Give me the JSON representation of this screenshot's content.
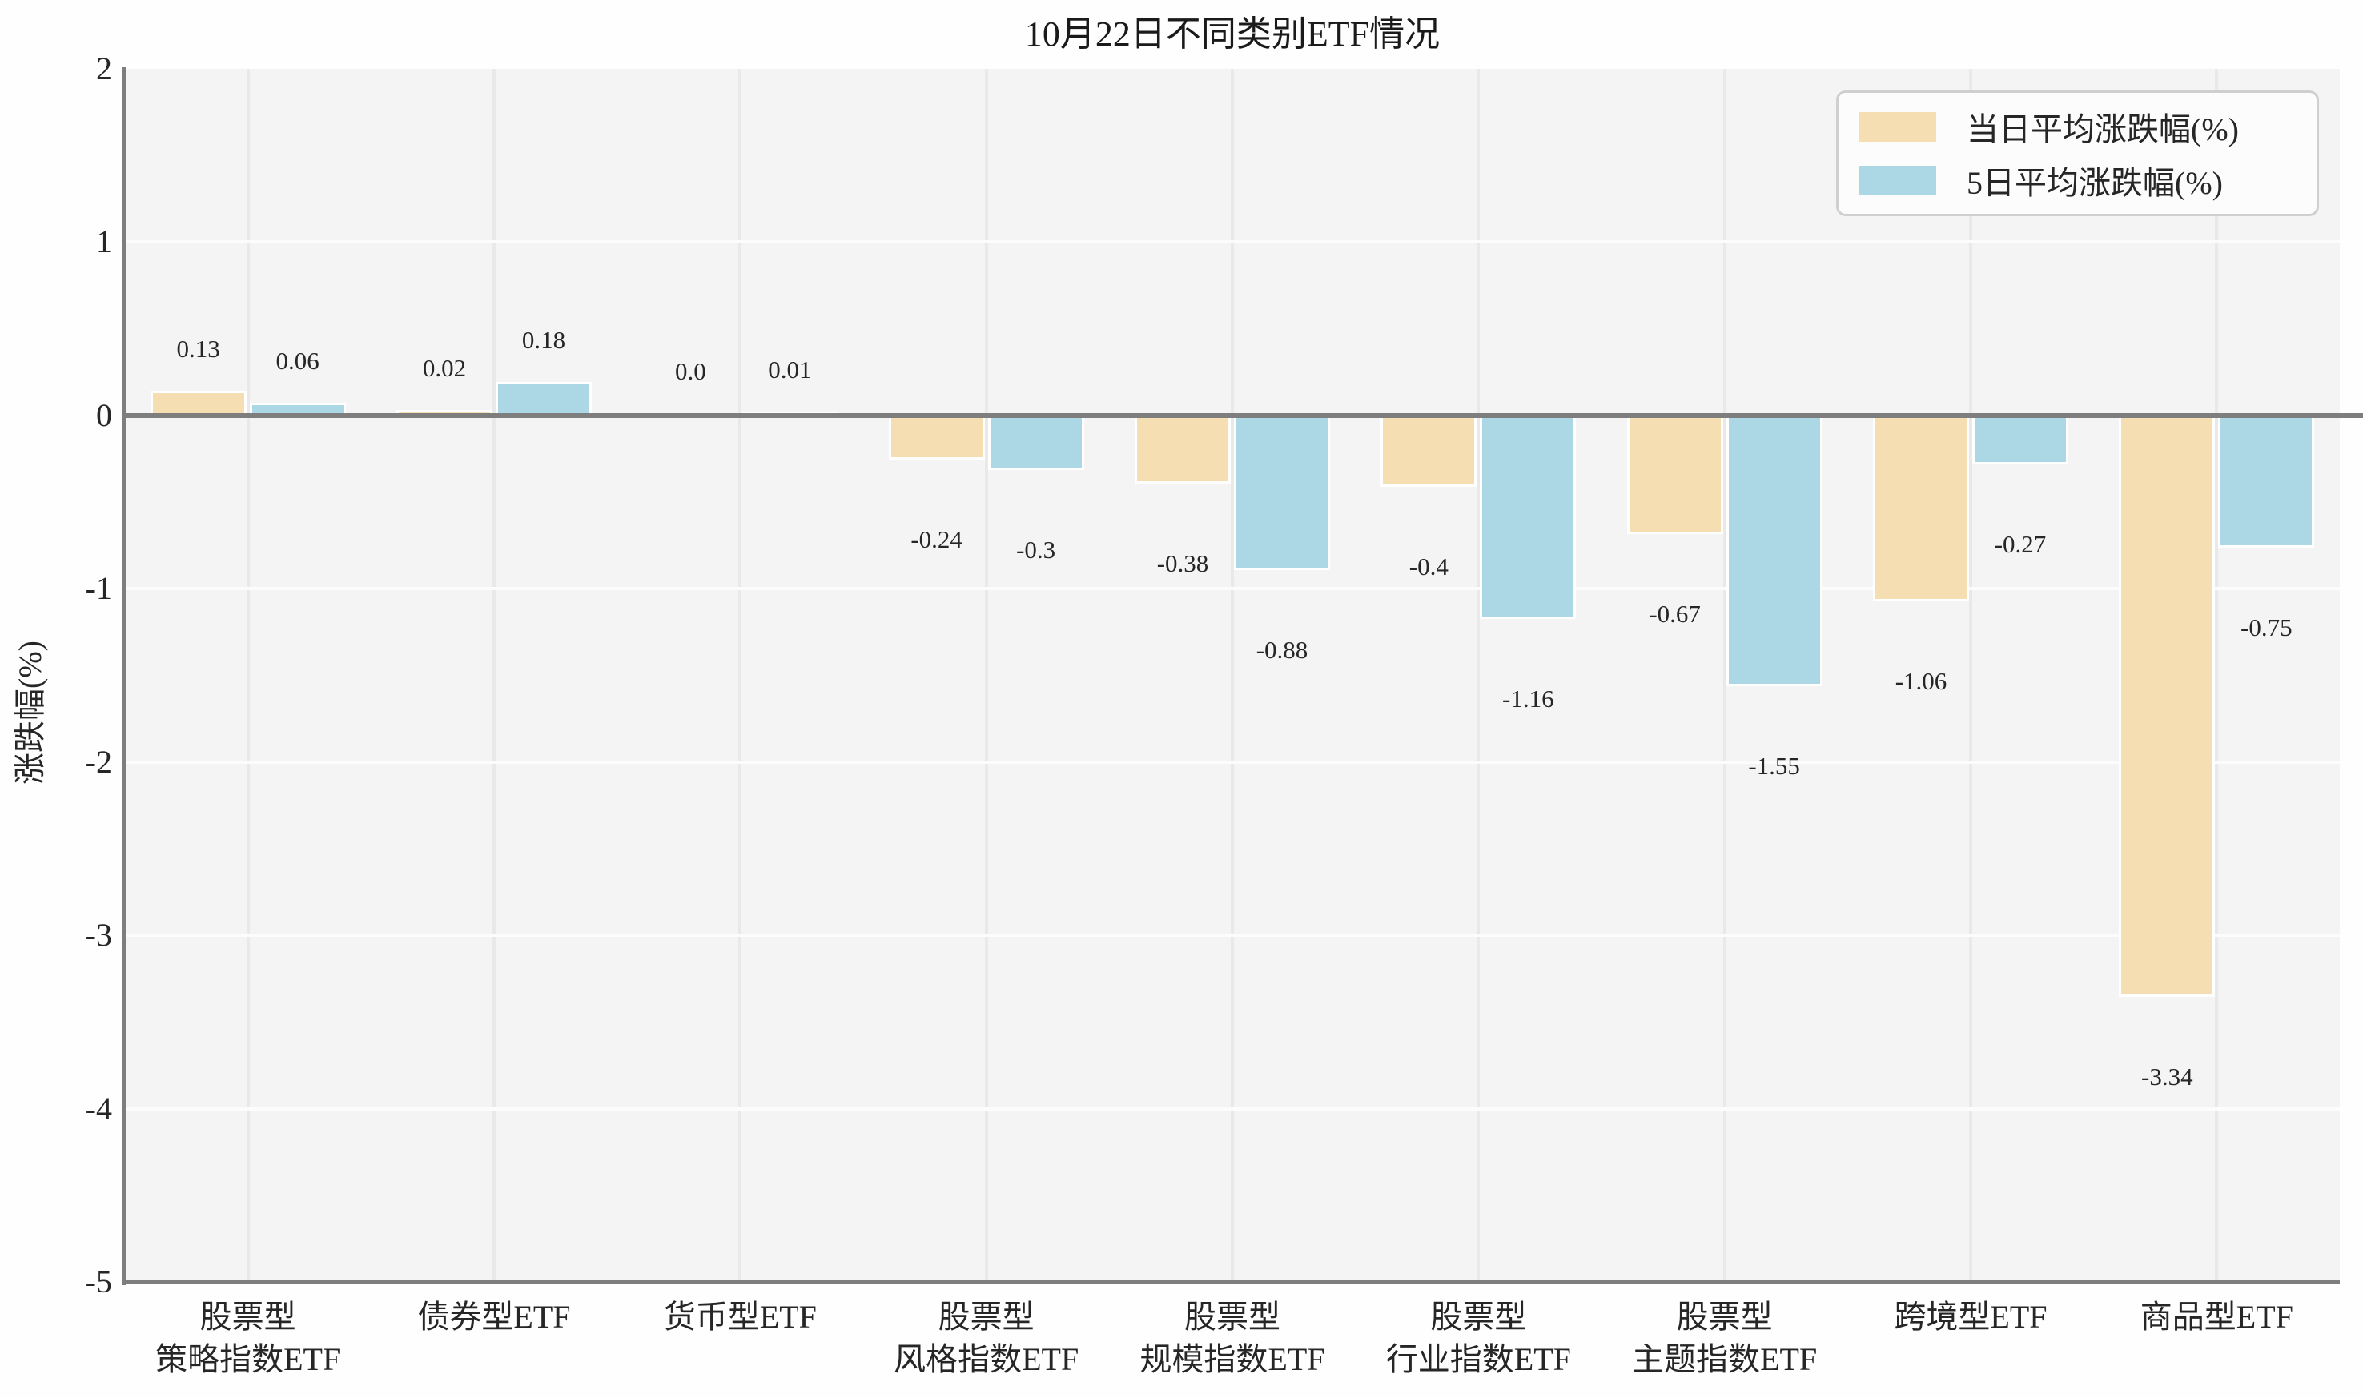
{
  "figure": {
    "title": "10月22日不同类别ETF情况"
  },
  "axes": {
    "ylabel": "涨跌幅(%)",
    "plot_background": "#F4F4F4",
    "spine_color": "#7E7E7E",
    "vgrid_color": "#E9E9E9",
    "hgrid_color": "#FCFCFC"
  },
  "legend": {
    "items": [
      {
        "label": "当日平均涨跌幅(%)",
        "color": "#F4DEB2"
      },
      {
        "label": "5日平均涨跌幅(%)",
        "color": "#ACD8E5"
      }
    ]
  },
  "chart_data": {
    "type": "bar",
    "title": "10月22日不同类别ETF情况",
    "xlabel": "",
    "ylabel": "涨跌幅(%)",
    "ylim": [
      -5,
      2
    ],
    "yticks": [
      2,
      1,
      0,
      -1,
      -2,
      -3,
      -4,
      -5
    ],
    "grid": true,
    "legend_position": "upper right",
    "categories": [
      "股票型\n策略指数ETF",
      "债券型ETF",
      "货币型ETF",
      "股票型\n风格指数ETF",
      "股票型\n规模指数ETF",
      "股票型\n行业指数ETF",
      "股票型\n主题指数ETF",
      "跨境型ETF",
      "商品型ETF"
    ],
    "series": [
      {
        "name": "当日平均涨跌幅(%)",
        "color": "#F4DEB2",
        "values": [
          0.13,
          0.02,
          0.0,
          -0.24,
          -0.38,
          -0.4,
          -0.67,
          -1.06,
          -3.34
        ],
        "labels": [
          "0.13",
          "0.02",
          "0.0",
          "-0.24",
          "-0.38",
          "-0.4",
          "-0.67",
          "-1.06",
          "-3.34"
        ]
      },
      {
        "name": "5日平均涨跌幅(%)",
        "color": "#ACD8E5",
        "values": [
          0.06,
          0.18,
          0.01,
          -0.3,
          -0.88,
          -1.16,
          -1.55,
          -0.27,
          -0.75
        ],
        "labels": [
          "0.06",
          "0.18",
          "0.01",
          "-0.3",
          "-0.88",
          "-1.16",
          "-1.55",
          "-0.27",
          "-0.75"
        ]
      }
    ]
  }
}
